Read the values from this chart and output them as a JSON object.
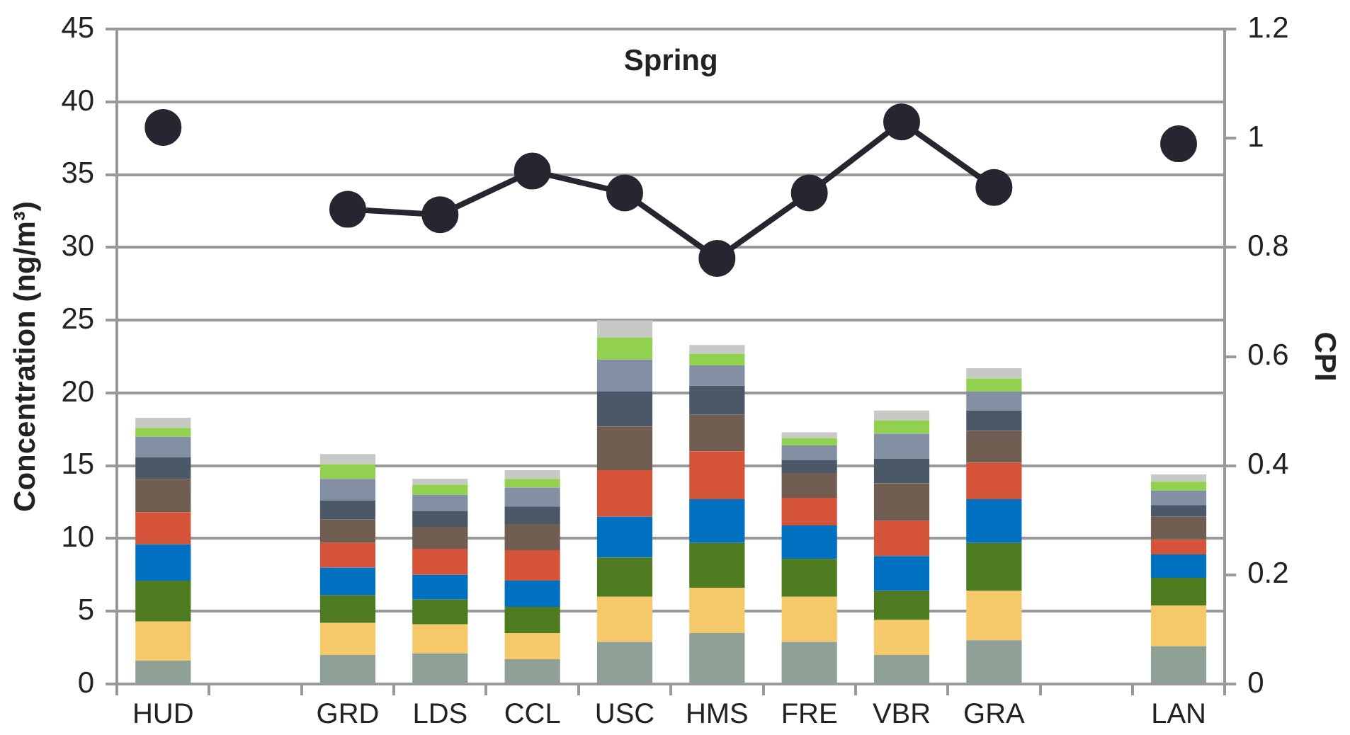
{
  "chart_data": {
    "type": "bar",
    "title": "Spring",
    "ylabel": "Concentration (ng/m³)",
    "y2label": "CPI",
    "categories": [
      "HUD",
      null,
      "GRD",
      "LDS",
      "CCL",
      "USC",
      "HMS",
      "FRE",
      "VBR",
      "GRA",
      null,
      "LAN"
    ],
    "stacked": true,
    "grid": "y",
    "ylim": [
      0,
      45
    ],
    "yticks": [
      0,
      5,
      10,
      15,
      20,
      25,
      30,
      35,
      40,
      45
    ],
    "y2lim": [
      0,
      1.2
    ],
    "y2ticks": [
      0,
      0.2,
      0.4,
      0.6,
      0.8,
      1,
      1.2
    ],
    "series": [
      {
        "color": "#8fa096",
        "values": [
          1.6,
          null,
          2.0,
          2.1,
          1.7,
          2.9,
          3.5,
          2.9,
          2.0,
          3.0,
          null,
          2.6
        ]
      },
      {
        "color": "#f5c96a",
        "values": [
          2.7,
          null,
          2.2,
          2.0,
          1.8,
          3.1,
          3.1,
          3.1,
          2.4,
          3.4,
          null,
          2.8
        ]
      },
      {
        "color": "#4e7a20",
        "values": [
          2.8,
          null,
          1.9,
          1.7,
          1.8,
          2.7,
          3.1,
          2.6,
          2.0,
          3.3,
          null,
          1.9
        ]
      },
      {
        "color": "#0070c0",
        "values": [
          2.5,
          null,
          1.9,
          1.7,
          1.8,
          2.8,
          3.0,
          2.3,
          2.4,
          3.0,
          null,
          1.6
        ]
      },
      {
        "color": "#d45339",
        "values": [
          2.2,
          null,
          1.7,
          1.8,
          2.1,
          3.2,
          3.3,
          1.9,
          2.4,
          2.5,
          null,
          1.0
        ]
      },
      {
        "color": "#705e52",
        "values": [
          2.3,
          null,
          1.6,
          1.5,
          1.8,
          3.0,
          2.5,
          1.7,
          2.6,
          2.2,
          null,
          1.6
        ]
      },
      {
        "color": "#4a5868",
        "values": [
          1.5,
          null,
          1.3,
          1.1,
          1.2,
          2.4,
          2.0,
          0.9,
          1.7,
          1.4,
          null,
          0.8
        ]
      },
      {
        "color": "#8390a4",
        "values": [
          1.4,
          null,
          1.5,
          1.1,
          1.3,
          2.2,
          1.4,
          1.0,
          1.7,
          1.3,
          null,
          1.0
        ]
      },
      {
        "color": "#92d050",
        "values": [
          0.6,
          null,
          1.0,
          0.7,
          0.6,
          1.5,
          0.8,
          0.5,
          0.9,
          0.9,
          null,
          0.6
        ]
      },
      {
        "color": "#c6c9c4",
        "values": [
          0.7,
          null,
          0.7,
          0.4,
          0.6,
          1.2,
          0.6,
          0.4,
          0.7,
          0.7,
          null,
          0.5
        ]
      },
      {
        "type": "line",
        "axis": "y2",
        "marker": "circle",
        "color": "#262630",
        "values": [
          1.02,
          null,
          0.87,
          0.86,
          0.94,
          0.9,
          0.78,
          0.9,
          1.03,
          0.91,
          null,
          0.99
        ]
      }
    ]
  }
}
